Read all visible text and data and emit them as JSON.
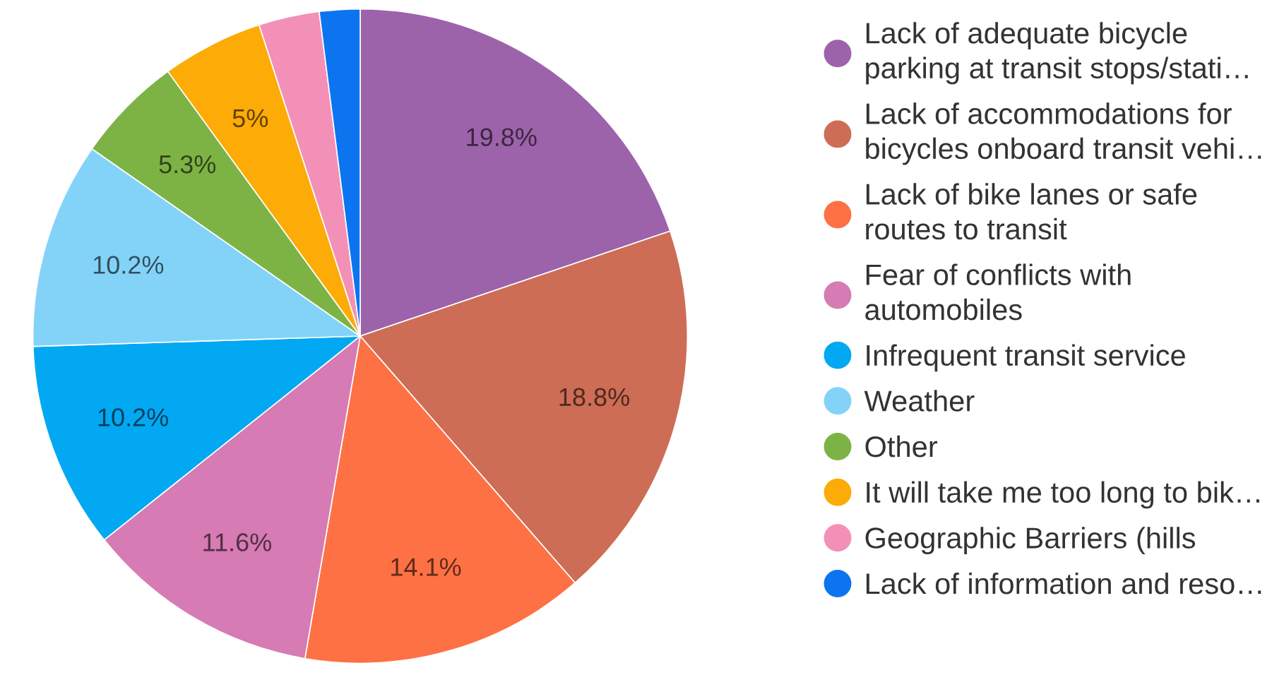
{
  "chart_data": {
    "type": "pie",
    "categories": [
      "Lack of adequate bicycle\nparking at transit stops/stati…",
      "Lack of accommodations for\nbicycles onboard transit vehi…",
      "Lack of bike lanes or safe\nroutes to transit",
      "Fear of conflicts with\nautomobiles",
      "Infrequent transit service",
      "Weather",
      "Other",
      "It will take me too long to bik…",
      "Geographic Barriers (hills",
      "Lack of information and reso…"
    ],
    "values": [
      19.8,
      18.8,
      14.1,
      11.6,
      10.2,
      10.2,
      5.3,
      5,
      3.0,
      2.0
    ],
    "colors": [
      "#9c63ab",
      "#cd6d55",
      "#fe7145",
      "#d67bb3",
      "#03a8f2",
      "#83d3f8",
      "#7db345",
      "#fdab06",
      "#f390b8",
      "#0d74f0"
    ],
    "value_labels": [
      "19.8%",
      "18.8%",
      "14.1%",
      "11.6%",
      "10.2%",
      "10.2%",
      "5.3%",
      "5%",
      null,
      null
    ],
    "legend": "right"
  }
}
